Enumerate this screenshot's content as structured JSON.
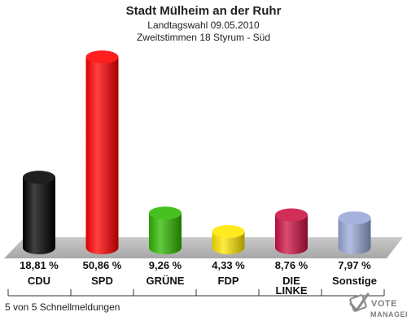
{
  "chart_data": {
    "type": "bar",
    "title": "Stadt Mülheim an der Ruhr",
    "subtitle_1": "Landtagswahl 09.05.2010",
    "subtitle_2": "Zweitstimmen 18 Styrum - Süd",
    "categories": [
      {
        "key": "cdu",
        "lines": [
          "CDU"
        ]
      },
      {
        "key": "spd",
        "lines": [
          "SPD"
        ]
      },
      {
        "key": "gruene",
        "lines": [
          "GRÜNE"
        ]
      },
      {
        "key": "fdp",
        "lines": [
          "FDP"
        ]
      },
      {
        "key": "linke",
        "lines": [
          "DIE",
          "LINKE"
        ]
      },
      {
        "key": "sonstige",
        "lines": [
          "Sonstige"
        ]
      }
    ],
    "values": [
      18.81,
      50.86,
      9.26,
      4.33,
      8.76,
      7.97
    ],
    "value_labels": [
      "18,81 %",
      "50,86 %",
      "9,26 %",
      "4,33 %",
      "8,76 %",
      "7,97 %"
    ],
    "colors": [
      "#000000",
      "#ff0000",
      "#2eb800",
      "#ffe600",
      "#cc1144",
      "#99a8d8"
    ],
    "unit": "%",
    "ylim": [
      0,
      55
    ],
    "grid": false
  },
  "footer": {
    "status": "5 von 5 Schnellmeldungen",
    "logo_text_1": "VOTE",
    "logo_text_2": "MANAGER",
    "logo_icon": "checkmark-ballot-icon"
  }
}
